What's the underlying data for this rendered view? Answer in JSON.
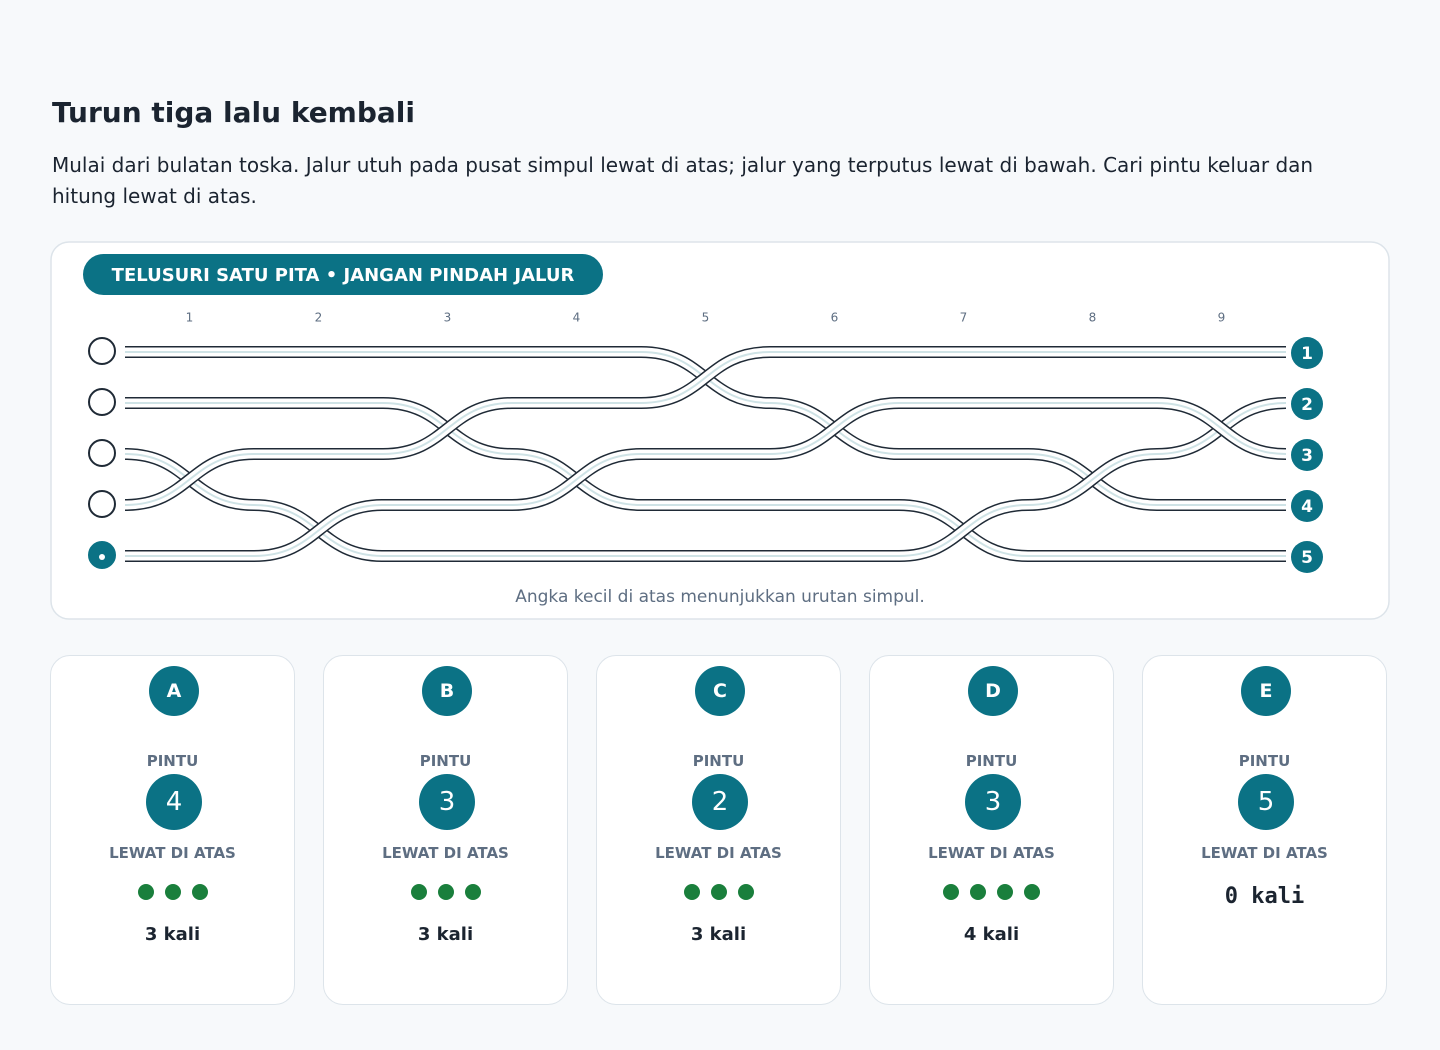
{
  "header": {
    "title": "Turun tiga lalu kembali",
    "instructions": "Mulai dari bulatan toska. Jalur utuh pada pusat simpul lewat di atas; jalur yang terputus lewat di bawah. Cari pintu keluar dan hitung lewat di atas."
  },
  "board": {
    "badge": "TELUSURI SATU PITA • JANGAN PINDAH JALUR",
    "crossing_numbers": [
      "1",
      "2",
      "3",
      "4",
      "5",
      "6",
      "7",
      "8",
      "9"
    ],
    "exits": [
      "1",
      "2",
      "3",
      "4",
      "5"
    ],
    "caption": "Angka kecil di atas menunjukkan urutan simpul."
  },
  "options": [
    {
      "letter": "A",
      "door_label": "PINTU",
      "door": "4",
      "over_label": "LEWAT DI ATAS",
      "count": 3,
      "count_label": "3 kali"
    },
    {
      "letter": "B",
      "door_label": "PINTU",
      "door": "3",
      "over_label": "LEWAT DI ATAS",
      "count": 3,
      "count_label": "3 kali"
    },
    {
      "letter": "C",
      "door_label": "PINTU",
      "door": "2",
      "over_label": "LEWAT DI ATAS",
      "count": 3,
      "count_label": "3 kali"
    },
    {
      "letter": "D",
      "door_label": "PINTU",
      "door": "3",
      "over_label": "LEWAT DI ATAS",
      "count": 4,
      "count_label": "4 kali"
    },
    {
      "letter": "E",
      "door_label": "PINTU",
      "door": "5",
      "over_label": "LEWAT DI ATAS",
      "count": 0,
      "count_label": "0 kali"
    }
  ]
}
